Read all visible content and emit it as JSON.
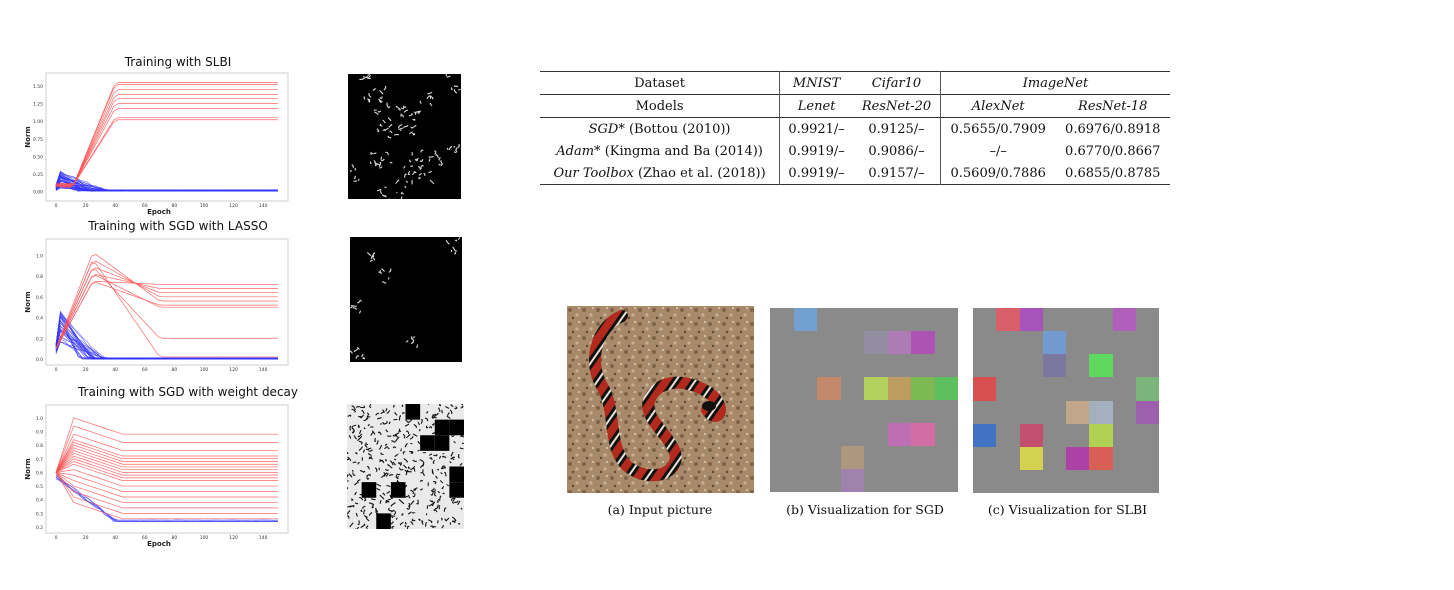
{
  "plots": [
    {
      "title": "Training with SLBI",
      "ylabel": "Norm",
      "xlabel": "Epoch",
      "yticks": [
        "1.50",
        "1.25",
        "1.00",
        "0.75",
        "0.50",
        "0.25",
        "0.00"
      ],
      "xticks": [
        "0",
        "20",
        "40",
        "60",
        "80",
        "100",
        "120",
        "140"
      ]
    },
    {
      "title": "Training with SGD with LASSO",
      "ylabel": "Norm",
      "xlabel": "",
      "yticks": [
        "1.0",
        "0.8",
        "0.6",
        "0.4",
        "0.2",
        "0.0"
      ],
      "xticks": [
        "0",
        "20",
        "40",
        "60",
        "80",
        "100",
        "120",
        "140"
      ]
    },
    {
      "title": "Training with SGD with weight decay",
      "ylabel": "Norm",
      "xlabel": "Epoch",
      "yticks": [
        "1.0",
        "0.9",
        "0.8",
        "0.7",
        "0.6",
        "0.5",
        "0.4",
        "0.3",
        "0.2"
      ],
      "xticks": [
        "0",
        "20",
        "40",
        "60",
        "80",
        "100",
        "120",
        "140"
      ]
    }
  ],
  "chart_data": [
    {
      "type": "line",
      "title": "Training with SLBI",
      "xlabel": "Epoch",
      "ylabel": "Norm",
      "xlim": [
        0,
        150
      ],
      "ylim": [
        -0.05,
        1.6
      ],
      "series": [
        {
          "color": "#ff4d4d",
          "values_plateau": [
            1.55,
            1.52,
            1.45,
            1.38,
            1.32,
            1.25,
            1.18,
            1.05,
            1.02
          ]
        },
        {
          "color": "#3333ff",
          "values_plateau": [
            0.01,
            0.02
          ]
        }
      ]
    },
    {
      "type": "line",
      "title": "Training with SGD with LASSO",
      "xlabel": "",
      "ylabel": "Norm",
      "xlim": [
        0,
        150
      ],
      "ylim": [
        0,
        1.1
      ],
      "series": [
        {
          "color": "#ff4d4d",
          "values_plateau": [
            0.72,
            0.68,
            0.64,
            0.6,
            0.56,
            0.52,
            0.5,
            0.2,
            0.02
          ]
        },
        {
          "color": "#3333ff",
          "values_plateau": [
            0.0,
            0.01
          ]
        }
      ]
    },
    {
      "type": "line",
      "title": "Training with SGD with weight decay",
      "xlabel": "Epoch",
      "ylabel": "Norm",
      "xlim": [
        0,
        150
      ],
      "ylim": [
        0.2,
        1.05
      ],
      "series": [
        {
          "color": "#ff4d4d",
          "values_plateau": [
            0.88,
            0.82,
            0.76,
            0.72,
            0.7,
            0.68,
            0.66,
            0.64,
            0.62,
            0.6,
            0.58,
            0.56,
            0.54,
            0.5,
            0.46,
            0.42,
            0.38,
            0.34,
            0.3,
            0.26
          ]
        },
        {
          "color": "#3333ff",
          "values_plateau": [
            0.24,
            0.25
          ]
        }
      ]
    }
  ],
  "table": {
    "header1": [
      "Dataset",
      "MNIST",
      "Cifar10",
      "ImageNet"
    ],
    "header2": [
      "Models",
      "Lenet",
      "ResNet-20",
      "AlexNet",
      "ResNet-18"
    ],
    "rows": [
      {
        "method": "SGD*",
        "ref": " (Bottou (2010))",
        "values": [
          "0.9921/–",
          "0.9125/–",
          "0.5655/0.7909",
          "0.6976/0.8918"
        ]
      },
      {
        "method": "Adam*",
        "ref": " (Kingma and Ba (2014))",
        "values": [
          "0.9919/–",
          "0.9086/–",
          "–/–",
          "0.6770/0.8667"
        ]
      },
      {
        "method": "Our Toolbox",
        "ref": " (Zhao et al. (2018))",
        "values": [
          "0.9919/–",
          "0.9157/–",
          "0.5609/0.7886",
          "0.6855/0.8785"
        ]
      }
    ]
  },
  "captions": [
    "(a) Input picture",
    "(b) Visualization for SGD",
    "(c) Visualization for SLBI"
  ],
  "colors": {
    "red_lines": "#ff4d4d",
    "blue_lines": "#3333ff"
  }
}
